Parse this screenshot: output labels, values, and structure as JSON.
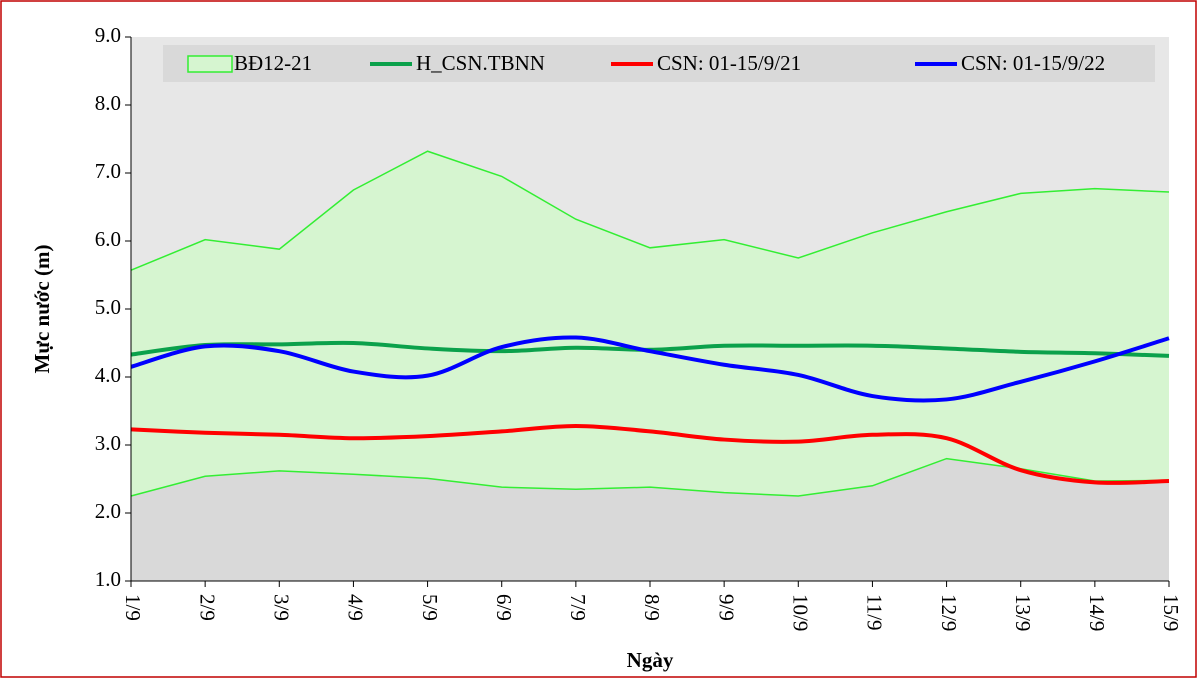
{
  "chart_data": {
    "type": "line",
    "y_label": "Mực nước (m)",
    "x_label": "Ngày",
    "categories": [
      "1/9",
      "2/9",
      "3/9",
      "4/9",
      "5/9",
      "6/9",
      "7/9",
      "8/9",
      "9/9",
      "10/9",
      "11/9",
      "12/9",
      "13/9",
      "14/9",
      "15/9"
    ],
    "series": [
      {
        "name": "BĐ12-21",
        "color": "#33ee33",
        "fill": "#d6f5d0",
        "values": [
          5.57,
          6.02,
          5.88,
          6.75,
          7.32,
          6.95,
          6.32,
          5.9,
          6.02,
          5.75,
          6.12,
          6.43,
          6.7,
          6.77,
          6.72
        ],
        "base": [
          2.25,
          2.54,
          2.62,
          2.57,
          2.51,
          2.38,
          2.35,
          2.38,
          2.3,
          2.25,
          2.4,
          2.8,
          2.65,
          2.47,
          2.48
        ]
      },
      {
        "name": "H_CSN.TBNN",
        "color": "#0ba14b",
        "values": [
          4.33,
          4.47,
          4.48,
          4.5,
          4.42,
          4.38,
          4.43,
          4.4,
          4.46,
          4.46,
          4.46,
          4.42,
          4.37,
          4.35,
          4.31
        ]
      },
      {
        "name": "CSN: 01-15/9/21",
        "color": "#ff0000",
        "values": [
          3.23,
          3.18,
          3.15,
          3.1,
          3.13,
          3.2,
          3.28,
          3.2,
          3.08,
          3.05,
          3.15,
          3.1,
          2.63,
          2.45,
          2.47
        ]
      },
      {
        "name": "CSN: 01-15/9/22",
        "color": "#0000ff",
        "values": [
          4.15,
          4.45,
          4.38,
          4.08,
          4.02,
          4.44,
          4.58,
          4.38,
          4.18,
          4.03,
          3.72,
          3.67,
          3.93,
          4.23,
          4.57
        ]
      }
    ],
    "ylim": [
      1,
      9
    ],
    "yticks": [
      {
        "value": 1,
        "label": "1.0"
      },
      {
        "value": 2,
        "label": "2.0"
      },
      {
        "value": 3,
        "label": "3.0"
      },
      {
        "value": 4,
        "label": "4.0"
      },
      {
        "value": 5,
        "label": "5.0"
      },
      {
        "value": 6,
        "label": "6.0"
      },
      {
        "value": 7,
        "label": "7.0"
      },
      {
        "value": 8,
        "label": "8.0"
      },
      {
        "value": 9,
        "label": "9.0"
      }
    ],
    "grid": false,
    "legend": "top"
  }
}
